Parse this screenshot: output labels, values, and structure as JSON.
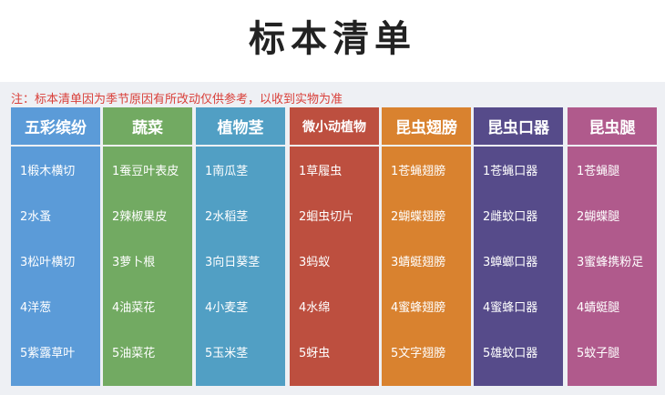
{
  "title": "标本清单",
  "note": "注：标本清单因为季节原因有所改动仅供参考，以收到实物为准",
  "columns": [
    {
      "header": "五彩缤纷",
      "color": "#5b9bd8",
      "items": [
        "1椴木横切",
        "2水蚤",
        "3松叶横切",
        "4洋葱",
        "5紫露草叶"
      ]
    },
    {
      "header": "蔬菜",
      "color": "#72aa62",
      "items": [
        "1蚕豆叶表皮",
        "2辣椒果皮",
        "3萝卜根",
        "4油菜花",
        "5油菜花"
      ]
    },
    {
      "header": "植物茎",
      "color": "#519fc4",
      "items": [
        "1南瓜茎",
        "2水稻茎",
        "3向日葵茎",
        "4小麦茎",
        "5玉米茎"
      ]
    },
    {
      "header": "微小动植物",
      "color": "#bd4f3f",
      "items": [
        "1草履虫",
        "2蛔虫切片",
        "3蚂蚁",
        "4水绵",
        "5蚜虫"
      ]
    },
    {
      "header": "昆虫翅膀",
      "color": "#d9822f",
      "items": [
        "1苍蝇翅膀",
        "2蝴蝶翅膀",
        "3蜻蜓翅膀",
        "4蜜蜂翅膀",
        "5文字翅膀"
      ]
    },
    {
      "header": "昆虫口器",
      "color": "#564b8a",
      "items": [
        "1苍蝇口器",
        "2雌蚊口器",
        "3蟑螂口器",
        "4蜜蜂口器",
        "5雄蚊口器"
      ]
    },
    {
      "header": "昆虫腿",
      "color": "#b05a8c",
      "items": [
        "1苍蝇腿",
        "2蝴蝶腿",
        "3蜜蜂携粉足",
        "4蜻蜓腿",
        "5蚊子腿"
      ]
    }
  ]
}
